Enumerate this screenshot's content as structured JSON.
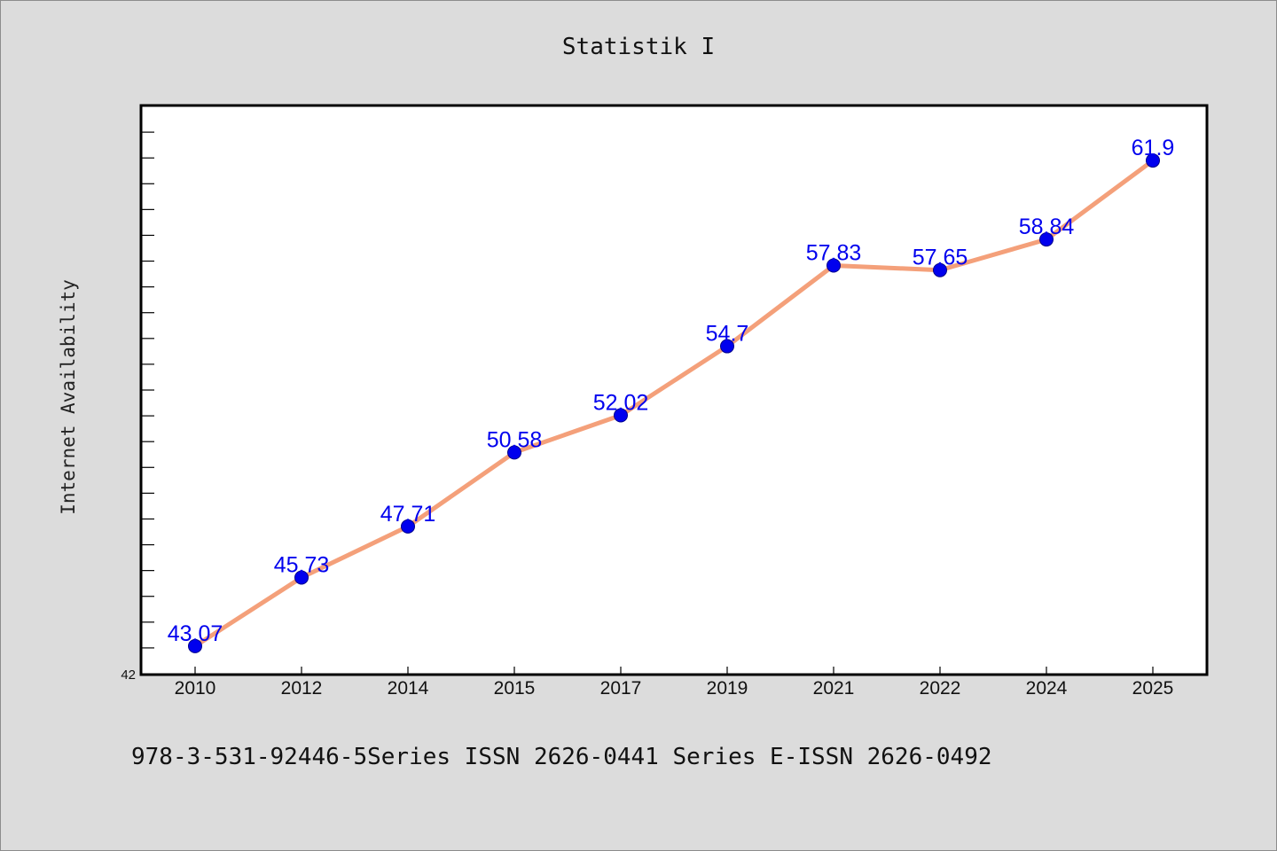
{
  "chart_data": {
    "type": "line",
    "title": "Statistik I",
    "xlabel": "",
    "ylabel": "Internet Availability",
    "categories": [
      "2010",
      "2012",
      "2014",
      "2015",
      "2017",
      "2019",
      "2021",
      "2022",
      "2024",
      "2025"
    ],
    "series": [
      {
        "values": [
          43.07,
          45.73,
          47.71,
          50.58,
          52.02,
          54.7,
          57.83,
          57.65,
          58.84,
          61.9
        ]
      }
    ],
    "data_labels": [
      "43.07",
      "45.73",
      "47.71",
      "50.58",
      "52.02",
      "54.7",
      "57.83",
      "57.65",
      "58.84",
      "61.9"
    ],
    "ylim": [
      42,
      64
    ],
    "y_min_label": "42",
    "grid": false,
    "line_color": "#f4a07a",
    "marker_color": "#0000ee",
    "label_color": "#0000ee"
  },
  "footer": "978-3-531-92446-5Series ISSN 2626-0441 Series E-ISSN 2626-0492"
}
